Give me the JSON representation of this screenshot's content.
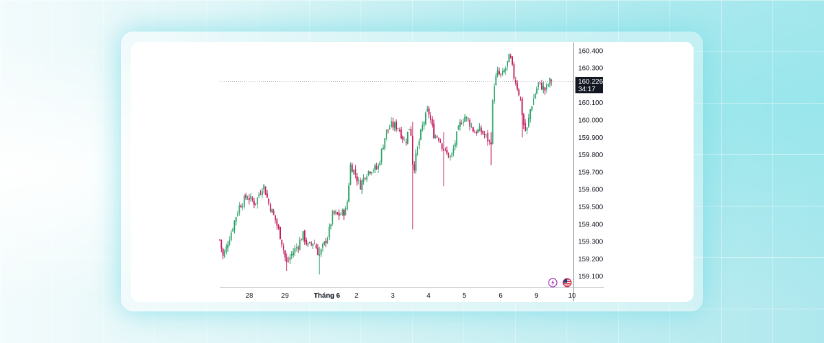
{
  "chart_data": {
    "type": "candlestick",
    "xlabels": [
      "28",
      "29",
      "Tháng 6",
      "2",
      "3",
      "4",
      "5",
      "6",
      "9",
      "10"
    ],
    "yticks": [
      "160.400",
      "160.300",
      "160.100",
      "160.000",
      "159.900",
      "159.800",
      "159.700",
      "159.600",
      "159.500",
      "159.400",
      "159.300",
      "159.200",
      "159.100"
    ],
    "ylim": [
      159.05,
      160.45
    ],
    "current_price": "160.226",
    "countdown": "34:17",
    "up_color": "#26a065",
    "down_color": "#c2185b",
    "grid": false,
    "path": [
      [
        0,
        159.31
      ],
      [
        5,
        159.21
      ],
      [
        18,
        159.37
      ],
      [
        28,
        159.5
      ],
      [
        40,
        159.56
      ],
      [
        52,
        159.52
      ],
      [
        64,
        159.63
      ],
      [
        72,
        159.52
      ],
      [
        82,
        159.42
      ],
      [
        90,
        159.32
      ],
      [
        98,
        159.17
      ],
      [
        106,
        159.23
      ],
      [
        115,
        159.28
      ],
      [
        122,
        159.34
      ],
      [
        130,
        159.27
      ],
      [
        138,
        159.3
      ],
      [
        146,
        159.22
      ],
      [
        153,
        159.28
      ],
      [
        160,
        159.35
      ],
      [
        166,
        159.46
      ],
      [
        174,
        159.45
      ],
      [
        186,
        159.48
      ],
      [
        192,
        159.74
      ],
      [
        198,
        159.7
      ],
      [
        206,
        159.62
      ],
      [
        214,
        159.69
      ],
      [
        222,
        159.72
      ],
      [
        232,
        159.72
      ],
      [
        244,
        159.93
      ],
      [
        252,
        159.97
      ],
      [
        262,
        159.96
      ],
      [
        272,
        159.87
      ],
      [
        280,
        159.98
      ],
      [
        284,
        159.7
      ],
      [
        290,
        159.83
      ],
      [
        298,
        159.97
      ],
      [
        306,
        160.06
      ],
      [
        314,
        159.92
      ],
      [
        322,
        159.9
      ],
      [
        330,
        159.82
      ],
      [
        340,
        159.78
      ],
      [
        348,
        159.91
      ],
      [
        354,
        159.99
      ],
      [
        360,
        160.02
      ],
      [
        366,
        159.99
      ],
      [
        374,
        159.93
      ],
      [
        382,
        159.94
      ],
      [
        392,
        159.9
      ],
      [
        398,
        159.85
      ],
      [
        402,
        160.2
      ],
      [
        408,
        160.27
      ],
      [
        414,
        160.25
      ],
      [
        420,
        160.3
      ],
      [
        426,
        160.37
      ],
      [
        432,
        160.25
      ],
      [
        438,
        160.18
      ],
      [
        442,
        160.1
      ],
      [
        446,
        159.98
      ],
      [
        450,
        159.92
      ],
      [
        456,
        160.06
      ],
      [
        462,
        160.14
      ],
      [
        468,
        160.21
      ],
      [
        474,
        160.19
      ],
      [
        478,
        160.17
      ],
      [
        484,
        160.22
      ],
      [
        489,
        160.23
      ]
    ],
    "spikes": [
      {
        "t": 284,
        "hi": 159.99,
        "lo": 159.37
      },
      {
        "t": 328,
        "hi": 159.93,
        "lo": 159.62
      },
      {
        "t": 399,
        "hi": 159.93,
        "lo": 159.74
      },
      {
        "t": 444,
        "hi": 160.12,
        "lo": 159.9
      },
      {
        "t": 146,
        "hi": 159.27,
        "lo": 159.11
      },
      {
        "t": 98,
        "hi": 159.2,
        "lo": 159.13
      }
    ]
  }
}
